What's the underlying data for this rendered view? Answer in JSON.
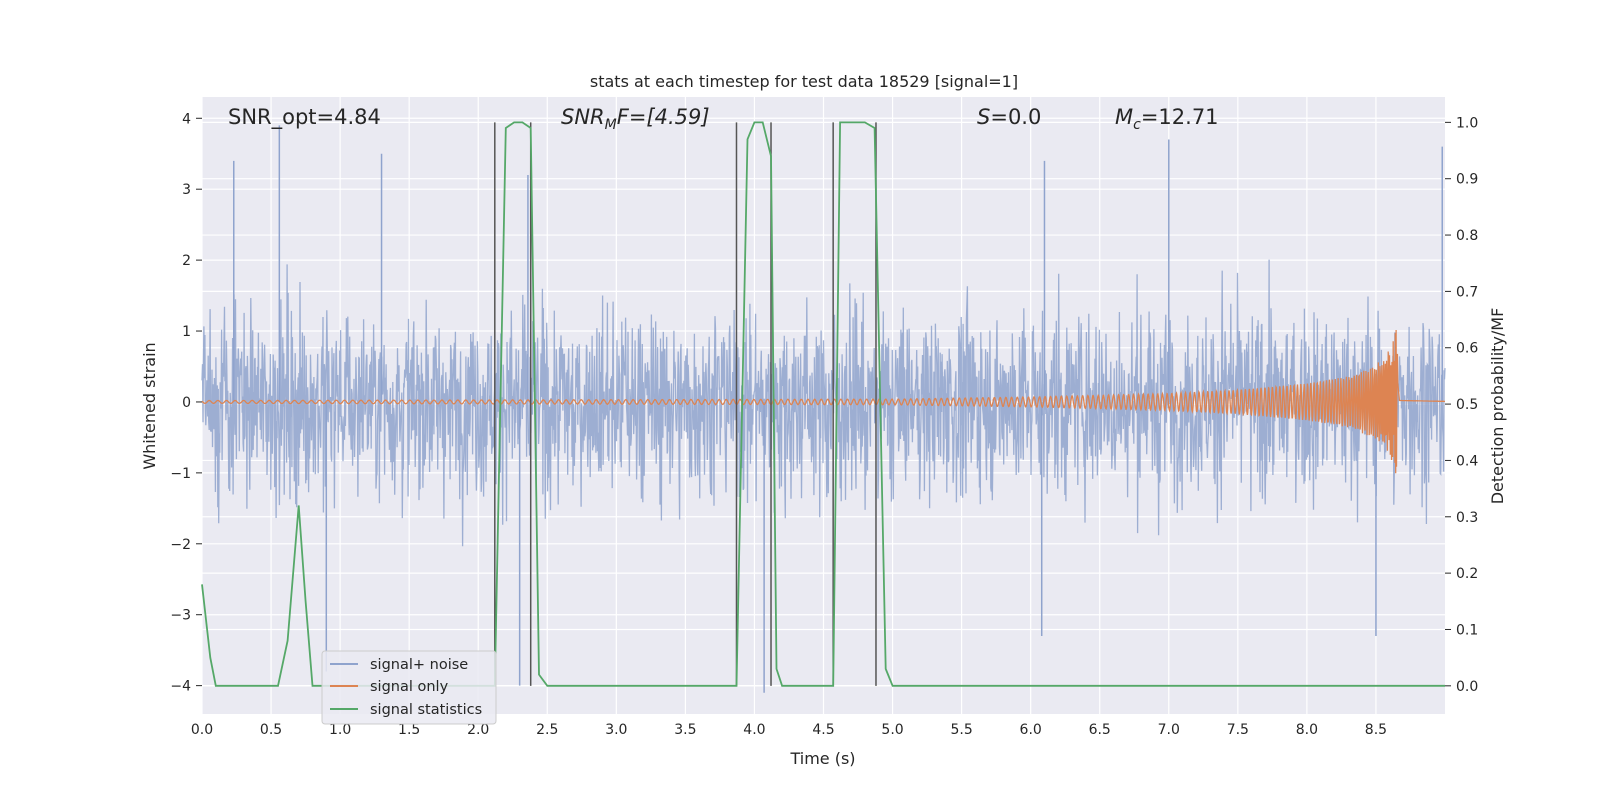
{
  "chart_data": {
    "type": "line",
    "title": "stats at each timestep for test data 18529 [signal=1]",
    "xlabel": "Time (s)",
    "ylabel_left": "Whitened strain",
    "ylabel_right": "Detection probability/MF",
    "xlim": [
      0,
      9.0
    ],
    "ylim_left": [
      -4.4,
      4.3
    ],
    "ylim_right": [
      -0.05,
      1.045
    ],
    "xticks": [
      "0.0",
      "0.5",
      "1.0",
      "1.5",
      "2.0",
      "2.5",
      "3.0",
      "3.5",
      "4.0",
      "4.5",
      "5.0",
      "5.5",
      "6.0",
      "6.5",
      "7.0",
      "7.5",
      "8.0",
      "8.5"
    ],
    "yticks_left": [
      "4",
      "3",
      "2",
      "1",
      "0",
      "−1",
      "−2",
      "−3",
      "−4"
    ],
    "yticks_right": [
      "1.0",
      "0.9",
      "0.8",
      "0.7",
      "0.6",
      "0.5",
      "0.4",
      "0.3",
      "0.2",
      "0.1",
      "0.0"
    ],
    "grid": true,
    "legend_placement": "lower-left",
    "annotations": {
      "snr_opt": "SNR_opt=4.84",
      "snr_mf_main": "SNR",
      "snr_mf_sub": "M",
      "snr_mf_rest": "F=[4.59]",
      "s_italic": "S",
      "s_rest": "=0.0",
      "mc_main": "M",
      "mc_sub": "c",
      "mc_rest": "=12.71"
    },
    "series": [
      {
        "name": "signal+ noise",
        "color": "#8fa3cd",
        "style": "dense noise trace, amplitude ~ ±1.6 with spikes to ±4",
        "notable_peaks": [
          [
            0.23,
            3.4
          ],
          [
            0.56,
            3.9
          ],
          [
            1.3,
            3.5
          ],
          [
            2.36,
            3.2
          ],
          [
            6.1,
            3.4
          ],
          [
            7.0,
            3.7
          ],
          [
            8.98,
            3.6
          ]
        ],
        "notable_troughs": [
          [
            0.9,
            -3.8
          ],
          [
            2.3,
            -4.0
          ],
          [
            4.07,
            -4.1
          ],
          [
            6.08,
            -3.3
          ],
          [
            8.5,
            -3.3
          ]
        ]
      },
      {
        "name": "signal only",
        "color": "#dd8452",
        "style": "chirp growing in amplitude toward merger",
        "envelope": [
          [
            0,
            0.02
          ],
          [
            5.0,
            0.04
          ],
          [
            6.0,
            0.07
          ],
          [
            7.0,
            0.12
          ],
          [
            7.5,
            0.17
          ],
          [
            8.0,
            0.26
          ],
          [
            8.3,
            0.36
          ],
          [
            8.5,
            0.52
          ],
          [
            8.6,
            0.75
          ],
          [
            8.65,
            1.05
          ],
          [
            8.67,
            0.05
          ],
          [
            9.0,
            0.02
          ]
        ]
      },
      {
        "name": "signal statistics",
        "color": "#55a868",
        "axis": "right",
        "x": [
          0.0,
          0.06,
          0.1,
          0.15,
          0.2,
          0.3,
          0.55,
          0.62,
          0.7,
          0.75,
          0.8,
          0.9,
          1.0,
          1.5,
          2.0,
          2.12,
          2.2,
          2.26,
          2.32,
          2.38,
          2.44,
          2.5,
          3.0,
          3.87,
          3.95,
          4.0,
          4.06,
          4.12,
          4.16,
          4.2,
          4.5,
          4.57,
          4.62,
          4.7,
          4.8,
          4.87,
          4.95,
          5.0,
          5.5,
          9.0
        ],
        "y": [
          0.18,
          0.05,
          0.0,
          0.0,
          0.0,
          0.0,
          0.0,
          0.08,
          0.32,
          0.15,
          0.0,
          0.0,
          0.0,
          0.0,
          0.0,
          0.0,
          0.99,
          1.0,
          1.0,
          0.99,
          0.02,
          0.0,
          0.0,
          0.0,
          0.97,
          1.0,
          1.0,
          0.94,
          0.03,
          0.0,
          0.0,
          0.0,
          1.0,
          1.0,
          1.0,
          0.99,
          0.03,
          0.0,
          0.0,
          0.0
        ]
      }
    ],
    "vertical_markers": [
      2.12,
      2.38,
      3.87,
      4.12,
      4.57,
      4.88
    ],
    "marker_color": "#555555"
  }
}
